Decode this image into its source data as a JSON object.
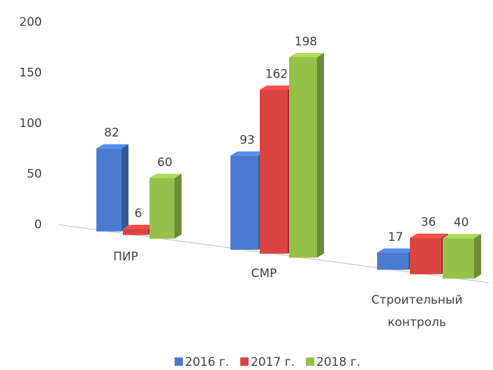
{
  "chart_data": {
    "type": "bar3d",
    "categories": [
      "ПИР",
      "СМР",
      "Строительный контроль"
    ],
    "series": [
      {
        "name": "2016 г.",
        "color": "#4a7bd0",
        "values": [
          82,
          93,
          17
        ]
      },
      {
        "name": "2017 г.",
        "color": "#d9443f",
        "values": [
          6,
          162,
          36
        ]
      },
      {
        "name": "2018 г.",
        "color": "#95c14b",
        "values": [
          60,
          198,
          40
        ]
      }
    ],
    "ylim": [
      0,
      200
    ],
    "yticks": [
      0,
      50,
      100,
      150,
      200
    ],
    "legend": "bottom"
  }
}
